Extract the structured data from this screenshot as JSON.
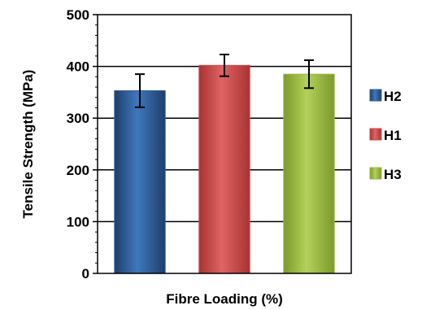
{
  "chart_data": {
    "type": "bar",
    "categories": [
      "H2",
      "H1",
      "H3"
    ],
    "values": [
      353,
      402,
      385
    ],
    "errors": [
      32,
      21,
      27
    ],
    "colors": [
      "#2f5f98",
      "#cc4b4b",
      "#9ab93e"
    ],
    "xlabel": "Fibre Loading (%)",
    "ylabel": "Tensile Strength (MPa)",
    "ylim": [
      0,
      500
    ],
    "yticks": [
      "0",
      "100",
      "200",
      "300",
      "400",
      "500"
    ],
    "grid": true,
    "legend": {
      "position": "right",
      "entries": [
        "H2",
        "H1",
        "H3"
      ]
    }
  }
}
